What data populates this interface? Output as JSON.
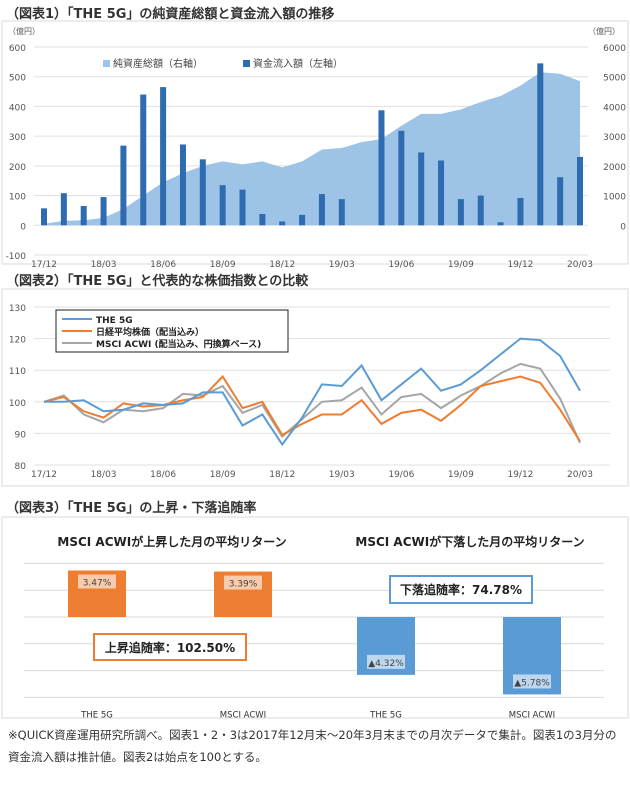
{
  "chart_data": [
    {
      "type": "bar+area",
      "title": "（図表1）「THE 5G」の純資産総額と資金流入額の推移",
      "left_unit": "（億円）",
      "right_unit": "（億円）",
      "ylim_left": [
        -100,
        600
      ],
      "ylim_right": [
        -1000,
        6000
      ],
      "yticks_left": [
        "-100",
        "0",
        "100",
        "200",
        "300",
        "400",
        "500",
        "600"
      ],
      "yticks_right": [
        "",
        "0",
        "1000",
        "2000",
        "3000",
        "4000",
        "5000",
        "6000"
      ],
      "xtick_labels": [
        "17/12",
        "18/03",
        "18/06",
        "18/09",
        "18/12",
        "19/03",
        "19/06",
        "19/09",
        "19/12",
        "20/03"
      ],
      "months": [
        "17/12",
        "18/01",
        "18/02",
        "18/03",
        "18/04",
        "18/05",
        "18/06",
        "18/07",
        "18/08",
        "18/09",
        "18/10",
        "18/11",
        "18/12",
        "19/01",
        "19/02",
        "19/03",
        "19/04",
        "19/05",
        "19/06",
        "19/07",
        "19/08",
        "19/09",
        "19/10",
        "19/11",
        "19/12",
        "20/01",
        "20/02",
        "20/03"
      ],
      "series": [
        {
          "name": "純資産総額（右軸）",
          "axis": "right",
          "type": "area",
          "color": "#9dc3e6",
          "values": [
            50,
            150,
            170,
            250,
            550,
            1000,
            1450,
            1750,
            2000,
            2150,
            2050,
            2150,
            1950,
            2150,
            2550,
            2600,
            2800,
            2900,
            3350,
            3750,
            3750,
            3900,
            4150,
            4350,
            4700,
            5150,
            5100,
            4850
          ]
        },
        {
          "name": "資金流入額（左軸）",
          "axis": "left",
          "type": "bar",
          "color": "#2e6bb0",
          "values": [
            57,
            108,
            65,
            95,
            268,
            440,
            465,
            272,
            222,
            135,
            120,
            38,
            13,
            35,
            105,
            88,
            0,
            387,
            318,
            245,
            218,
            88,
            100,
            10,
            92,
            545,
            162,
            230
          ]
        }
      ],
      "legend": "top",
      "grid": true
    },
    {
      "type": "line",
      "title": "（図表2）「THE 5G」と代表的な株価指数との比較",
      "ylim": [
        80,
        130
      ],
      "yticks": [
        "80",
        "90",
        "100",
        "110",
        "120",
        "130"
      ],
      "xtick_labels": [
        "17/12",
        "18/03",
        "18/06",
        "18/09",
        "18/12",
        "19/03",
        "19/06",
        "19/09",
        "19/12",
        "20/03"
      ],
      "series": [
        {
          "name": "THE 5G",
          "color": "#5b9bd5",
          "values": [
            100,
            100,
            100.5,
            97,
            97.5,
            99.5,
            99,
            99.5,
            103,
            103,
            92.5,
            96,
            86.5,
            95,
            105.5,
            105,
            111.5,
            100.5,
            105.5,
            110.5,
            103.5,
            105.5,
            110,
            115,
            120,
            119.5,
            114.5,
            103.5
          ]
        },
        {
          "name": "日経平均株価（配当込み）",
          "color": "#ed7d31",
          "values": [
            100,
            101.5,
            97,
            95,
            99.5,
            98.5,
            99,
            100.5,
            101.5,
            108,
            98,
            100,
            89.5,
            93,
            96,
            96,
            100.5,
            93,
            96.5,
            97.5,
            94,
            99,
            105,
            106.5,
            108,
            106,
            97.5,
            87.5
          ]
        },
        {
          "name": "MSCI ACWI (配当込み、円換算ベース)",
          "color": "#a5a5a5",
          "values": [
            100,
            102,
            96,
            93.5,
            97.5,
            97,
            98,
            102.5,
            102,
            105,
            96.5,
            99,
            89,
            94.5,
            100,
            100.5,
            104.5,
            96,
            101.5,
            102.5,
            98,
            102,
            105,
            109,
            112,
            110.5,
            101,
            87
          ]
        }
      ],
      "legend": "top-left",
      "grid": true
    },
    {
      "type": "bar",
      "title": "（図表3）「THE 5G」の上昇・下落追随率",
      "ylim": [
        -6,
        4
      ],
      "panels": [
        {
          "subtitle": "MSCI ACWIが上昇した月の平均リターン",
          "color": "#ed7d31",
          "categories": [
            "THE 5G",
            "MSCI ACWI"
          ],
          "values": [
            3.47,
            3.39
          ],
          "labels": [
            "3.47%",
            "3.39%"
          ],
          "callout": "上昇追随率：102.50%"
        },
        {
          "subtitle": "MSCI ACWIが下落した月の平均リターン",
          "color": "#5b9bd5",
          "categories": [
            "THE 5G",
            "MSCI ACWI"
          ],
          "values": [
            -4.32,
            -5.78
          ],
          "labels": [
            "▲4.32%",
            "▲5.78%"
          ],
          "callout": "下落追随率：74.78%"
        }
      ]
    }
  ],
  "footnote": "※QUICK資産運用研究所調べ。図表1・2・3は2017年12月末～20年3月末までの月次データで集計。図表1の3月分の資金流入額は推計値。図表2は始点を100とする。"
}
